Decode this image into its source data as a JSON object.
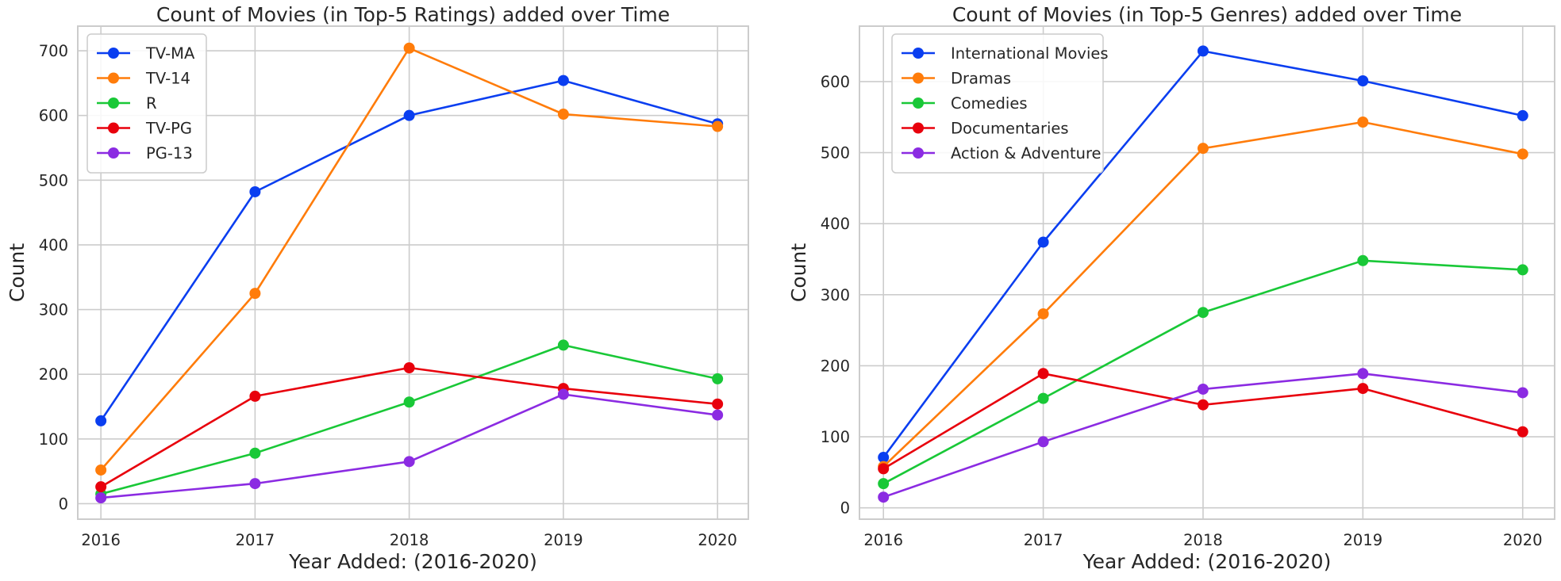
{
  "chart_data": [
    {
      "type": "line",
      "title": "Count of Movies (in Top-5 Ratings) added over Time",
      "xlabel": "Year Added: (2016-2020)",
      "ylabel": "Count",
      "x": [
        2016,
        2017,
        2018,
        2019,
        2020
      ],
      "x_tick_labels": [
        "2016",
        "2017",
        "2018",
        "2019",
        "2020"
      ],
      "y_ticks": [
        0,
        100,
        200,
        300,
        400,
        500,
        600,
        700
      ],
      "y_tick_labels": [
        "0",
        "100",
        "200",
        "300",
        "400",
        "500",
        "600",
        "700"
      ],
      "ylim": [
        -24,
        738
      ],
      "xlim": [
        2015.85,
        2020.2
      ],
      "grid": true,
      "legend_position": "upper-left",
      "series": [
        {
          "name": "TV-MA",
          "color": "#0a3ef0",
          "values": [
            128,
            482,
            600,
            654,
            587
          ]
        },
        {
          "name": "TV-14",
          "color": "#ff7c0a",
          "values": [
            52,
            325,
            704,
            602,
            583
          ]
        },
        {
          "name": "R",
          "color": "#19c837",
          "values": [
            15,
            78,
            157,
            245,
            193
          ]
        },
        {
          "name": "TV-PG",
          "color": "#e8000c",
          "values": [
            26,
            166,
            210,
            178,
            154
          ]
        },
        {
          "name": "PG-13",
          "color": "#8b2be2",
          "values": [
            9,
            31,
            65,
            169,
            137
          ]
        }
      ]
    },
    {
      "type": "line",
      "title": "Count of Movies (in Top-5 Genres) added over Time",
      "xlabel": "Year Added: (2016-2020)",
      "ylabel": "Count",
      "x": [
        2016,
        2017,
        2018,
        2019,
        2020
      ],
      "x_tick_labels": [
        "2016",
        "2017",
        "2018",
        "2019",
        "2020"
      ],
      "y_ticks": [
        0,
        100,
        200,
        300,
        400,
        500,
        600
      ],
      "y_tick_labels": [
        "0",
        "100",
        "200",
        "300",
        "400",
        "500",
        "600"
      ],
      "ylim": [
        -16,
        678
      ],
      "xlim": [
        2015.85,
        2020.2
      ],
      "grid": true,
      "legend_position": "upper-left",
      "series": [
        {
          "name": "International Movies",
          "color": "#0a3ef0",
          "values": [
            71,
            374,
            643,
            601,
            552
          ]
        },
        {
          "name": "Dramas",
          "color": "#ff7c0a",
          "values": [
            58,
            273,
            506,
            543,
            498
          ]
        },
        {
          "name": "Comedies",
          "color": "#19c837",
          "values": [
            34,
            154,
            275,
            348,
            335
          ]
        },
        {
          "name": "Documentaries",
          "color": "#e8000c",
          "values": [
            55,
            189,
            145,
            168,
            107
          ]
        },
        {
          "name": "Action & Adventure",
          "color": "#8b2be2",
          "values": [
            15,
            93,
            167,
            189,
            162
          ]
        }
      ]
    }
  ]
}
